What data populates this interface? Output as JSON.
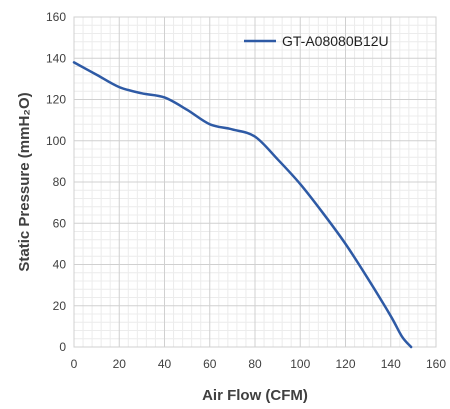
{
  "chart_data": {
    "type": "line",
    "xlabel": "Air Flow (CFM)",
    "ylabel": "Static Pressure (mmH₂O)",
    "xlim": [
      0,
      160
    ],
    "ylim": [
      0,
      160
    ],
    "x_ticks": [
      "0",
      "20",
      "40",
      "60",
      "80",
      "100",
      "120",
      "140",
      "160"
    ],
    "y_ticks": [
      "0",
      "20",
      "40",
      "60",
      "80",
      "100",
      "120",
      "140",
      "160"
    ],
    "grid": true,
    "legend_position": "top-right",
    "series": [
      {
        "name": "GT-A08080B12U",
        "color": "#2e5aa5",
        "x": [
          0,
          10,
          20,
          30,
          40,
          50,
          60,
          70,
          80,
          90,
          100,
          110,
          120,
          130,
          140,
          145,
          149
        ],
        "y": [
          138,
          132,
          126,
          123,
          121,
          115,
          108,
          105.5,
          102,
          91,
          79,
          65,
          50,
          33,
          15,
          5,
          0
        ]
      }
    ]
  }
}
